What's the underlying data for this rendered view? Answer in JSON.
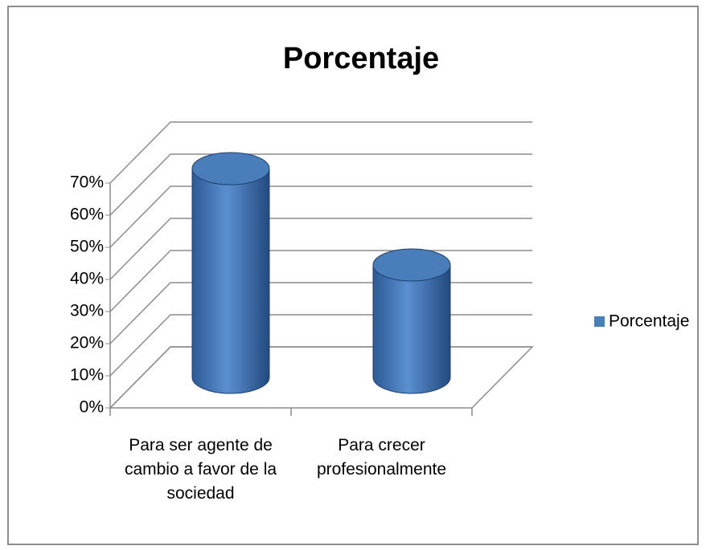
{
  "chart_data": {
    "type": "bar3d",
    "title": "Porcentaje",
    "categories": [
      "Para ser agente de cambio a favor de la sociedad",
      "Para crecer profesionalmente"
    ],
    "series": [
      {
        "name": "Porcentaje",
        "color": "#4a7ebb",
        "values": [
          65,
          35
        ]
      }
    ],
    "ylim": [
      0,
      70
    ],
    "yticks": [
      {
        "value": 0,
        "label": "0%"
      },
      {
        "value": 10,
        "label": "10%"
      },
      {
        "value": 20,
        "label": "20%"
      },
      {
        "value": 30,
        "label": "30%"
      },
      {
        "value": 40,
        "label": "40%"
      },
      {
        "value": 50,
        "label": "50%"
      },
      {
        "value": 60,
        "label": "60%"
      },
      {
        "value": 70,
        "label": "70%"
      }
    ],
    "grid": true,
    "legend": "right"
  }
}
